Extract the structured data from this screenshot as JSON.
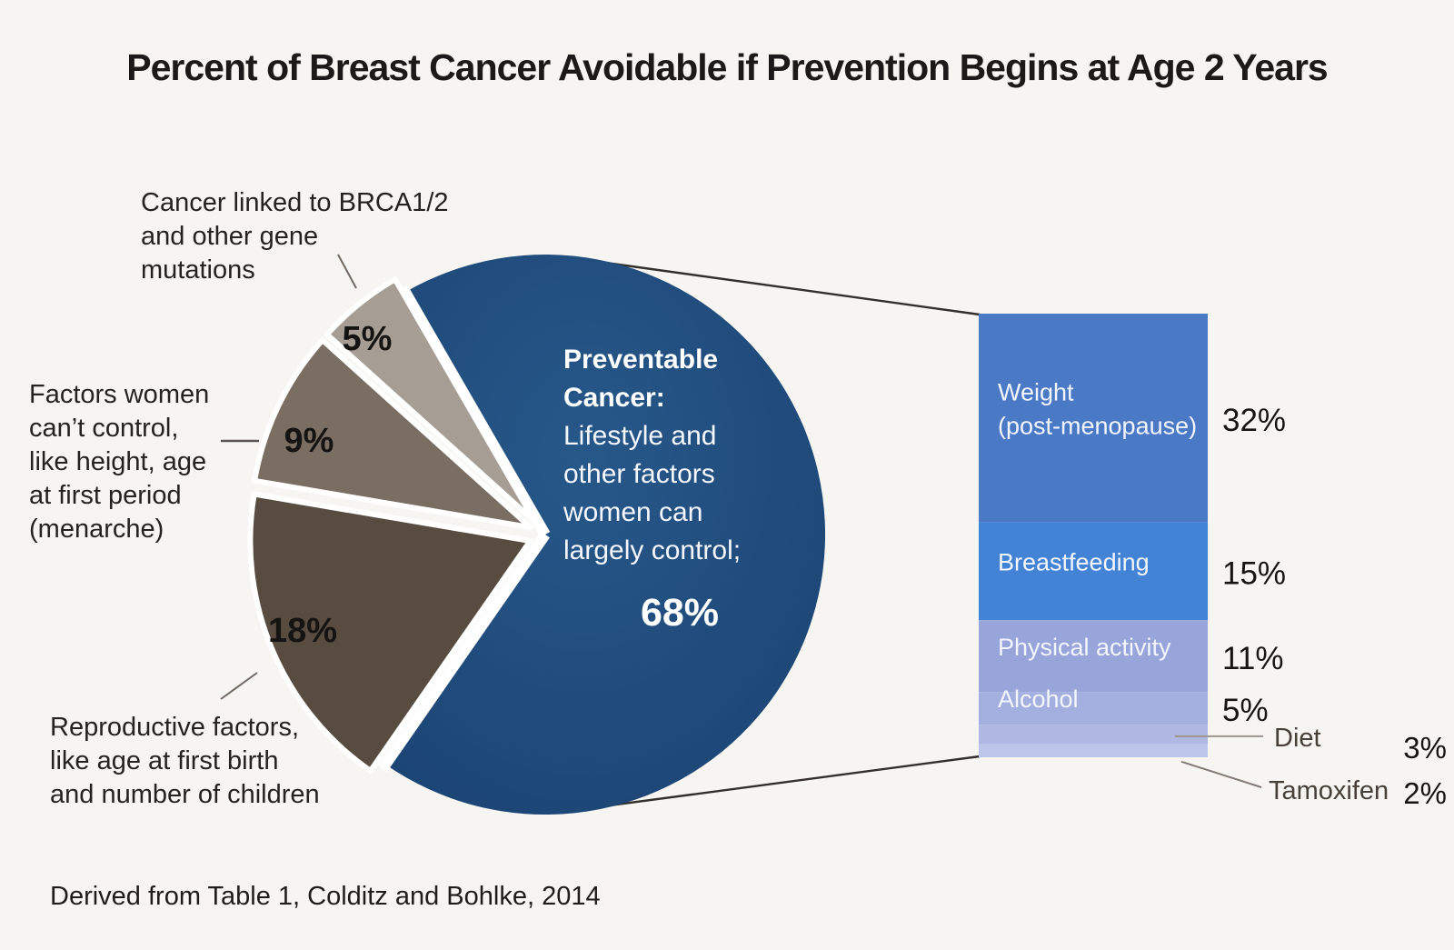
{
  "title": "Percent of Breast Cancer Avoidable if Prevention Begins at Age 2 Years",
  "source_note": "Derived from Table 1, Colditz and Bohlke, 2014",
  "chart_data": [
    {
      "type": "pie",
      "title": "Percent of Breast Cancer Avoidable if Prevention Begins at Age 2 Years",
      "slices": [
        {
          "label": "Preventable Cancer: Lifestyle and other factors women can largely control",
          "value": 68,
          "color": "#1e4c7b"
        },
        {
          "label": "Cancer linked to BRCA1/2 and other gene mutations",
          "value": 5,
          "color": "#a69d94"
        },
        {
          "label": "Factors women can’t control, like height, age at first period (menarche)",
          "value": 9,
          "color": "#7a6e63"
        },
        {
          "label": "Reproductive factors, like age at first birth and number of children",
          "value": 18,
          "color": "#584c41"
        }
      ]
    },
    {
      "type": "stacked-bar",
      "segments": [
        {
          "label": "Weight (post-menopause)",
          "label_lines": [
            "Weight",
            "(post-menopause)"
          ],
          "value": 32,
          "color": "#4a7ac6"
        },
        {
          "label": "Breastfeeding",
          "label_lines": [
            "Breastfeeding"
          ],
          "value": 15,
          "color": "#4383d6"
        },
        {
          "label": "Physical activity",
          "label_lines": [
            "Physical activity"
          ],
          "value": 11,
          "color": "#97a5db"
        },
        {
          "label": "Alcohol",
          "label_lines": [
            "Alcohol"
          ],
          "value": 5,
          "color": "#a3afdf"
        },
        {
          "label": "Diet",
          "value": 3,
          "color": "#aeb8e3"
        },
        {
          "label": "Tamoxifen",
          "value": 2,
          "color": "#bdc5ea"
        }
      ]
    }
  ],
  "pie_center": {
    "lines_bold": [
      "Preventable",
      "Cancer:"
    ],
    "lines": [
      "Lifestyle and",
      "other factors",
      "women can",
      "largely control;"
    ],
    "value_label": "68%"
  },
  "callouts": {
    "brca": [
      "Cancer linked to BRCA1/2",
      "and other gene",
      "mutations"
    ],
    "uncontrollable": [
      "Factors women",
      "can’t control,",
      "like height, age",
      "at first period",
      "(menarche)"
    ],
    "reproductive": [
      "Reproductive factors,",
      "like age at first birth",
      "and number of children"
    ]
  }
}
